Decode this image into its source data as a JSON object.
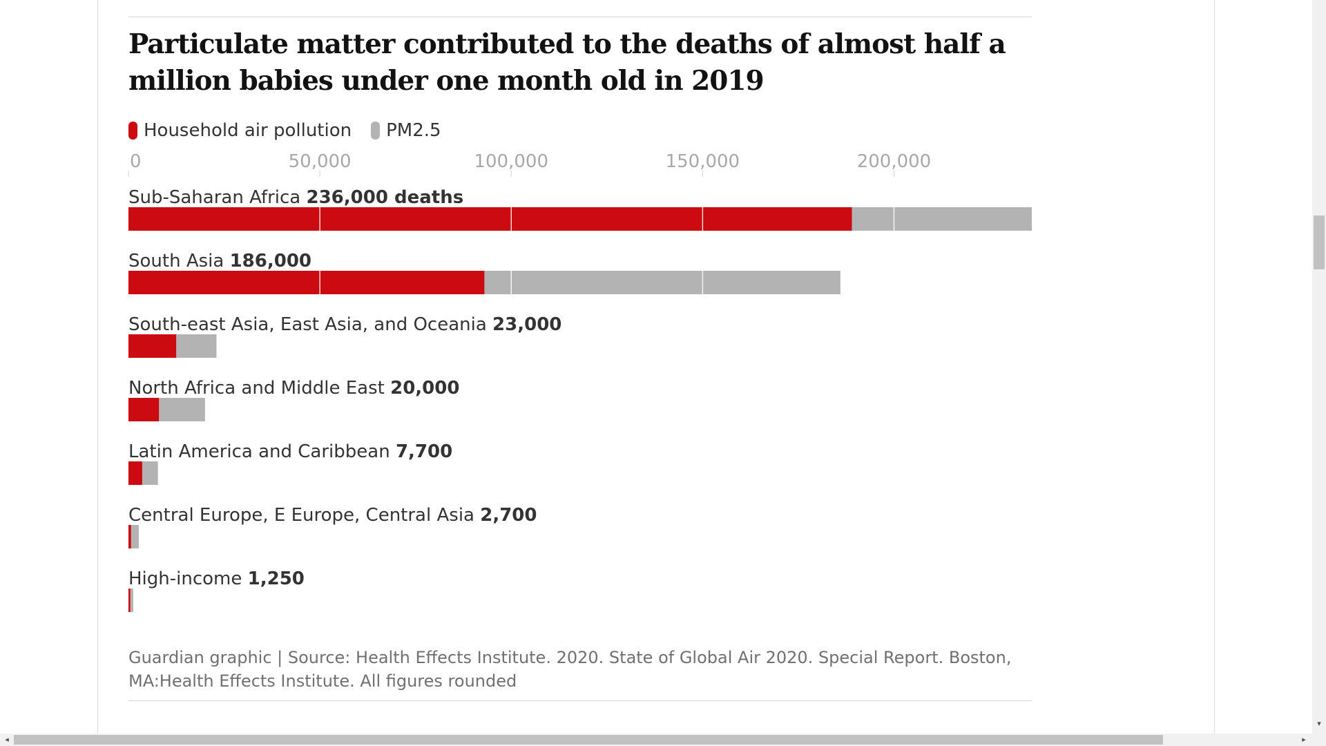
{
  "colors": {
    "household": "#cc0a11",
    "pm25": "#b3b3b3",
    "gridline": "#ffffff",
    "tick": "#a8a8a8"
  },
  "chart_data": {
    "type": "bar",
    "orientation": "horizontal",
    "stacked": true,
    "title": "Particulate matter contributed to the deaths of almost half a million babies under one month old in 2019",
    "legend": {
      "placement": "top-left",
      "entries": [
        "Household air pollution",
        "PM2.5"
      ]
    },
    "xlim": [
      0,
      236000
    ],
    "xticks": [
      {
        "value": 0,
        "label": "0"
      },
      {
        "value": 50000,
        "label": "50,000"
      },
      {
        "value": 100000,
        "label": "100,000"
      },
      {
        "value": 150000,
        "label": "150,000"
      },
      {
        "value": 200000,
        "label": "200,000"
      }
    ],
    "grid": true,
    "categories": [
      "Sub-Saharan Africa",
      "South Asia",
      "South-east Asia, East Asia, and Oceania",
      "North Africa and Middle East",
      "Latin America and Caribbean",
      "Central Europe, E Europe, Central Asia",
      "High-income"
    ],
    "total_labels": [
      "236,000 deaths",
      "186,000",
      "23,000",
      "20,000",
      "7,700",
      "2,700",
      "1,250"
    ],
    "totals": [
      236000,
      186000,
      23000,
      20000,
      7700,
      2700,
      1250
    ],
    "series": [
      {
        "name": "Household air pollution",
        "values": [
          189000,
          93000,
          12500,
          8000,
          3600,
          700,
          500
        ]
      },
      {
        "name": "PM2.5",
        "values": [
          47000,
          93000,
          10500,
          12000,
          4100,
          2000,
          750
        ]
      }
    ]
  },
  "footer": {
    "source": "Guardian graphic | Source: Health Effects Institute. 2020. State of Global Air 2020. Special Report. Boston, MA:Health Effects Institute. All figures rounded"
  },
  "scrollbar": {
    "down_arrow": "▾",
    "left_arrow": "◂",
    "right_arrow": "▸"
  }
}
